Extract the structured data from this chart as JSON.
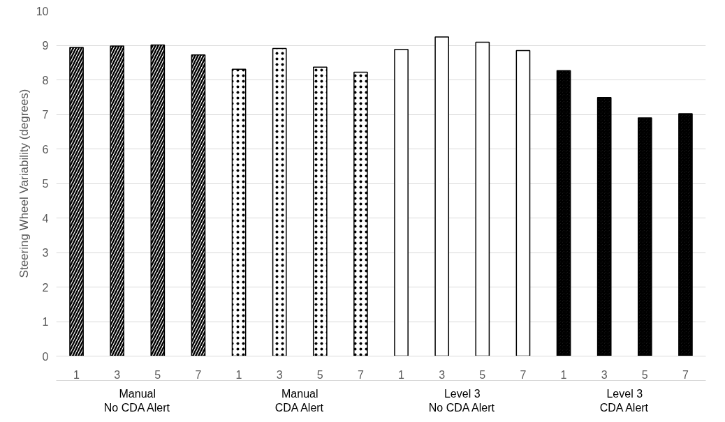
{
  "chart_data": {
    "type": "bar",
    "ylabel": "Steering Wheel Variability (degrees)",
    "categories": [
      "1",
      "3",
      "5",
      "7",
      "1",
      "3",
      "5",
      "7",
      "1",
      "3",
      "5",
      "7",
      "1",
      "3",
      "5",
      "7"
    ],
    "series": [
      {
        "name": "Manual\nNo CDA Alert",
        "color": "#000000",
        "values": [
          8.94,
          8.98,
          9.01,
          8.72,
          null,
          null,
          null,
          null,
          null,
          null,
          null,
          null,
          null,
          null,
          null,
          null
        ]
      },
      {
        "name": "Manual\nCDA Alert",
        "color": "#000000",
        "values": [
          null,
          null,
          null,
          null,
          8.31,
          8.91,
          8.37,
          8.22,
          null,
          null,
          null,
          null,
          null,
          null,
          null,
          null
        ]
      },
      {
        "name": "Level 3\nNo CDA Alert",
        "color": "#000000",
        "values": [
          null,
          null,
          null,
          null,
          null,
          null,
          null,
          null,
          8.88,
          9.24,
          9.09,
          8.85,
          null,
          null,
          null,
          null
        ]
      },
      {
        "name": "Level 3\nCDA Alert",
        "color": "#000000",
        "values": [
          null,
          null,
          null,
          null,
          null,
          null,
          null,
          null,
          null,
          null,
          null,
          null,
          8.27,
          7.49,
          6.9,
          7.02
        ]
      }
    ],
    "ylim": [
      0,
      10
    ],
    "yticks": [
      0,
      1,
      2,
      3,
      4,
      5,
      6,
      7,
      8,
      9,
      10
    ],
    "grid": "y"
  }
}
